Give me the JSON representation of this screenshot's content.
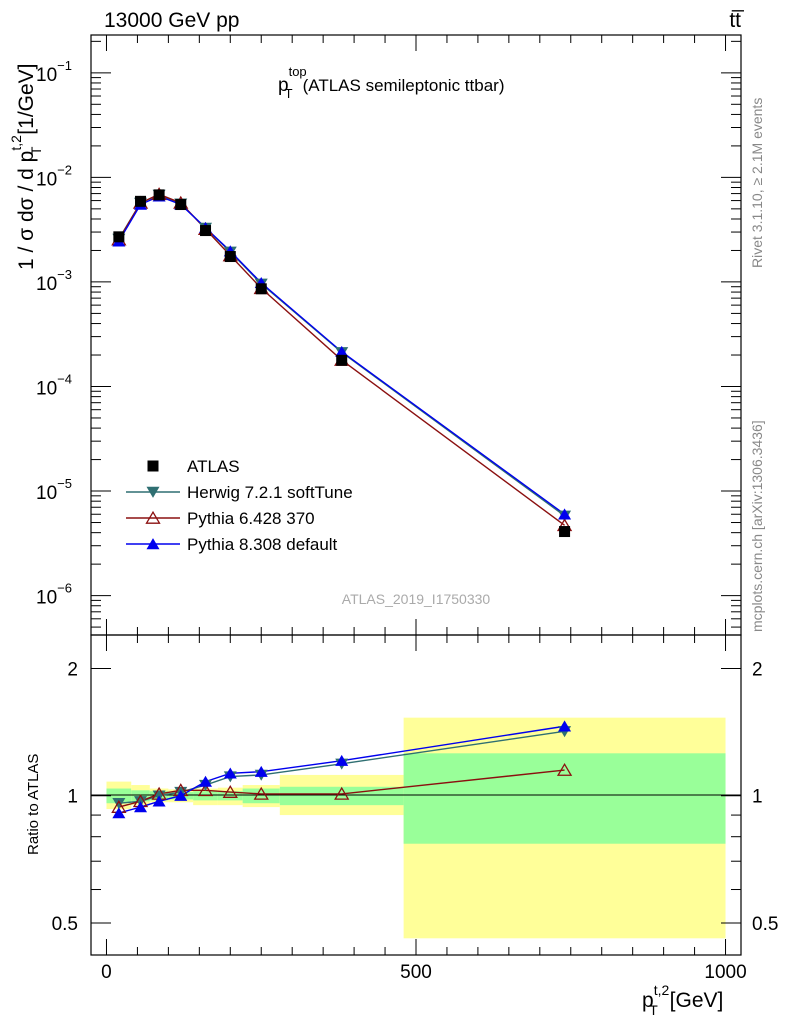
{
  "header": {
    "left": "13000 GeV pp",
    "right": "tt̅"
  },
  "side_labels": {
    "rivet": "Rivet 3.1.10, ≥ 2.1M events",
    "mcplots": "mcplots.cern.ch [arXiv:1306.3436]"
  },
  "plot_title": {
    "main": "p",
    "sup": "top",
    "sub": "T",
    "rest": "(ATLAS semileptonic ttbar)"
  },
  "analysis_id": "ATLAS_2019_I1750330",
  "legend": [
    {
      "label": "ATLAS",
      "marker": "square-filled",
      "color": "#000000"
    },
    {
      "label": "Herwig 7.2.1 softTune",
      "marker": "triangle-down-filled",
      "color": "#2f6f72"
    },
    {
      "label": "Pythia 6.428 370",
      "marker": "triangle-up-open",
      "color": "#8b1010"
    },
    {
      "label": "Pythia 8.308 default",
      "marker": "triangle-up-filled",
      "color": "#0000ee"
    }
  ],
  "axes": {
    "ylabel_main": {
      "pre": "1 / σ dσ / d p",
      "sup": "t,2",
      "sub": "T",
      "post": " [1/GeV]"
    },
    "ylabel_ratio": "Ratio to ATLAS",
    "xlabel": {
      "main": "p",
      "sup": "t,2",
      "sub": "T",
      "post": " [GeV]"
    },
    "x_ticks": [
      "0",
      "500",
      "1000"
    ],
    "y_main_ticks": [
      {
        "base": "10",
        "exp": "−6",
        "value": 1e-06
      },
      {
        "base": "10",
        "exp": "−5",
        "value": 1e-05
      },
      {
        "base": "10",
        "exp": "−4",
        "value": 0.0001
      },
      {
        "base": "10",
        "exp": "−3",
        "value": 0.001
      },
      {
        "base": "10",
        "exp": "−2",
        "value": 0.01
      },
      {
        "base": "10",
        "exp": "−1",
        "value": 0.1
      }
    ],
    "y_ratio_ticks": [
      "0.5",
      "1",
      "2"
    ]
  },
  "chart_data": {
    "type": "line",
    "x_scale": "linear",
    "y_scale_main": "log",
    "y_scale_ratio": "log",
    "xlim": [
      -25,
      1025
    ],
    "ylim_main": [
      4.2e-07,
      0.23
    ],
    "ylim_ratio": [
      0.42,
      2.4
    ],
    "bins": [
      [
        0,
        40
      ],
      [
        40,
        70
      ],
      [
        70,
        100
      ],
      [
        100,
        140
      ],
      [
        140,
        180
      ],
      [
        180,
        220
      ],
      [
        220,
        280
      ],
      [
        280,
        480
      ],
      [
        480,
        1000
      ]
    ],
    "x": [
      20,
      55,
      85,
      120,
      160,
      200,
      250,
      380,
      740
    ],
    "series": [
      {
        "name": "ATLAS",
        "values": [
          0.0027,
          0.0059,
          0.0068,
          0.0055,
          0.0031,
          0.00175,
          0.00086,
          0.000178,
          4.1e-06
        ]
      },
      {
        "name": "Herwig 7.2.1 softTune",
        "values": [
          0.00258,
          0.0057,
          0.0068,
          0.0056,
          0.00328,
          0.00194,
          0.00096,
          0.000212,
          5.8e-06
        ]
      },
      {
        "name": "Pythia 6.428 370",
        "values": [
          0.00254,
          0.0057,
          0.0069,
          0.0057,
          0.0032,
          0.00179,
          0.00087,
          0.000179,
          4.7e-06
        ]
      },
      {
        "name": "Pythia 8.308 default",
        "values": [
          0.00245,
          0.0055,
          0.0066,
          0.0055,
          0.0033,
          0.00197,
          0.00098,
          0.000215,
          6e-06
        ]
      }
    ],
    "ratio_series": [
      {
        "name": "Herwig 7.2.1 softTune",
        "values": [
          0.96,
          0.97,
          1.0,
          1.02,
          1.06,
          1.11,
          1.12,
          1.19,
          1.42
        ]
      },
      {
        "name": "Pythia 6.428 370",
        "values": [
          0.94,
          0.97,
          1.01,
          1.03,
          1.03,
          1.02,
          1.01,
          1.01,
          1.15
        ]
      },
      {
        "name": "Pythia 8.308 default",
        "values": [
          0.91,
          0.94,
          0.97,
          1.0,
          1.08,
          1.13,
          1.14,
          1.21,
          1.46
        ]
      }
    ],
    "ratio_band_stat": [
      [
        0.96,
        1.04
      ],
      [
        0.97,
        1.03
      ],
      [
        0.975,
        1.025
      ],
      [
        0.98,
        1.02
      ],
      [
        0.975,
        1.025
      ],
      [
        0.975,
        1.025
      ],
      [
        0.96,
        1.04
      ],
      [
        0.95,
        1.05
      ],
      [
        0.77,
        1.26
      ]
    ],
    "ratio_band_total": [
      [
        0.93,
        1.08
      ],
      [
        0.95,
        1.06
      ],
      [
        0.965,
        1.04
      ],
      [
        0.965,
        1.035
      ],
      [
        0.95,
        1.04
      ],
      [
        0.95,
        1.045
      ],
      [
        0.94,
        1.06
      ],
      [
        0.9,
        1.12
      ],
      [
        0.46,
        1.53
      ]
    ],
    "colors": {
      "band_stat": "#99ff99",
      "band_total": "#ffff99"
    }
  }
}
